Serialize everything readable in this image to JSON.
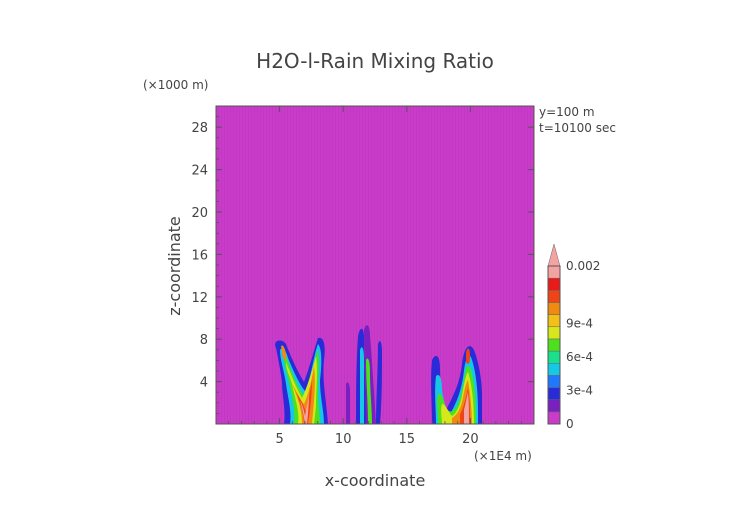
{
  "chart_data": {
    "type": "heatmap",
    "title": "H2O-l-Rain Mixing Ratio",
    "xlabel": "x-coordinate",
    "ylabel": "z-coordinate",
    "x_unit": "(×1E4 m)",
    "y_unit": "(×1000 m)",
    "x_ticks": [
      "5",
      "10",
      "15",
      "20"
    ],
    "x_tick_values": [
      5,
      10,
      15,
      20
    ],
    "y_ticks": [
      "4",
      "8",
      "12",
      "16",
      "20",
      "24",
      "28"
    ],
    "y_tick_values": [
      4,
      8,
      12,
      16,
      20,
      24,
      28
    ],
    "xlim": [
      0,
      25
    ],
    "ylim": [
      0,
      30
    ],
    "annotation_y": "y=100 m",
    "annotation_t": "t=10100 sec",
    "background_color": "#c93cc9",
    "colorbar": {
      "labels": [
        "0",
        "3e-4",
        "6e-4",
        "9e-4",
        "0.002"
      ],
      "label_values": [
        0,
        0.0003,
        0.0006,
        0.0009,
        0.002
      ],
      "colors": [
        "#c93cc9",
        "#7a1fc0",
        "#2a2ad8",
        "#1f78ff",
        "#14c8e6",
        "#18e08c",
        "#4de01e",
        "#d8e61c",
        "#f2c016",
        "#f08a10",
        "#ee4418",
        "#e81a1a",
        "#f4a3a3"
      ]
    },
    "features": [
      {
        "name": "left cluster",
        "x_range": [
          5,
          8.5
        ],
        "z_range": [
          0,
          8
        ],
        "max_value": 0.0012
      },
      {
        "name": "center streaks",
        "x_range": [
          10,
          12.5
        ],
        "z_range": [
          0,
          9
        ],
        "max_value": 0.0006
      },
      {
        "name": "right cluster",
        "x_range": [
          17,
          21
        ],
        "z_range": [
          0,
          8
        ],
        "max_value": 0.0012
      }
    ]
  }
}
